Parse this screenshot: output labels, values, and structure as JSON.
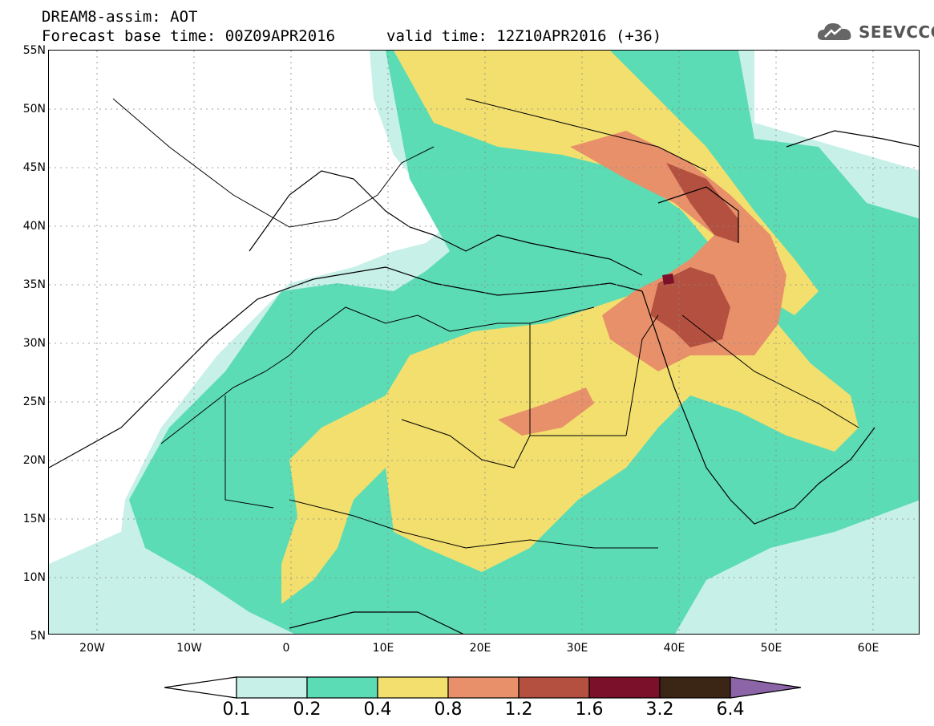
{
  "header": {
    "model_line": "DREAM8-assim: AOT",
    "base_time_line": "Forecast base time: 00Z09APR2016",
    "valid_time_line": "valid time: 12Z10APR2016 (+36)"
  },
  "logo": {
    "text": "SEEVCCC",
    "icon": "cloud-icon"
  },
  "map": {
    "variable": "AOT",
    "lat_ticks": [
      "55N",
      "50N",
      "45N",
      "40N",
      "35N",
      "30N",
      "25N",
      "20N",
      "15N",
      "10N",
      "5N"
    ],
    "lon_ticks": [
      "20W",
      "10W",
      "0",
      "10E",
      "20E",
      "30E",
      "40E",
      "50E",
      "60E"
    ],
    "extent": {
      "lon_min": -25,
      "lon_max": 65,
      "lat_min": 5,
      "lat_max": 55
    },
    "ocean_color": "#ffffff",
    "border_color": "#000000"
  },
  "legend": {
    "labels": [
      "0.1",
      "0.2",
      "0.4",
      "0.8",
      "1.2",
      "1.6",
      "3.2",
      "6.4"
    ],
    "colors": [
      "#c7f0e8",
      "#5cdcb4",
      "#f2df6e",
      "#e8906a",
      "#b4503f",
      "#7a1029",
      "#3b2515",
      "#8c64a8"
    ],
    "left_arrow_color": "#ffffff",
    "right_arrow_color": "#8c64a8"
  }
}
